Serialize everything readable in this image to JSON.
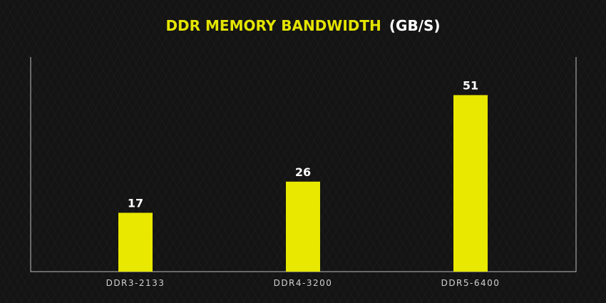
{
  "chart_data": {
    "type": "bar",
    "title": "DDR MEMORY BANDWIDTH",
    "title_unit": "(GB/S)",
    "categories": [
      "DDR3-2133",
      "DDR4-3200",
      "DDR5-6400"
    ],
    "values": [
      17,
      26,
      51
    ],
    "data_labels": [
      "17",
      "26",
      "51"
    ],
    "xlabel": "",
    "ylabel": "",
    "ylim": [
      0,
      62
    ],
    "grid": false,
    "legend": "none"
  },
  "colors": {
    "bar": "#e8e800",
    "title_accent": "#e4e400",
    "background": "#141414"
  }
}
